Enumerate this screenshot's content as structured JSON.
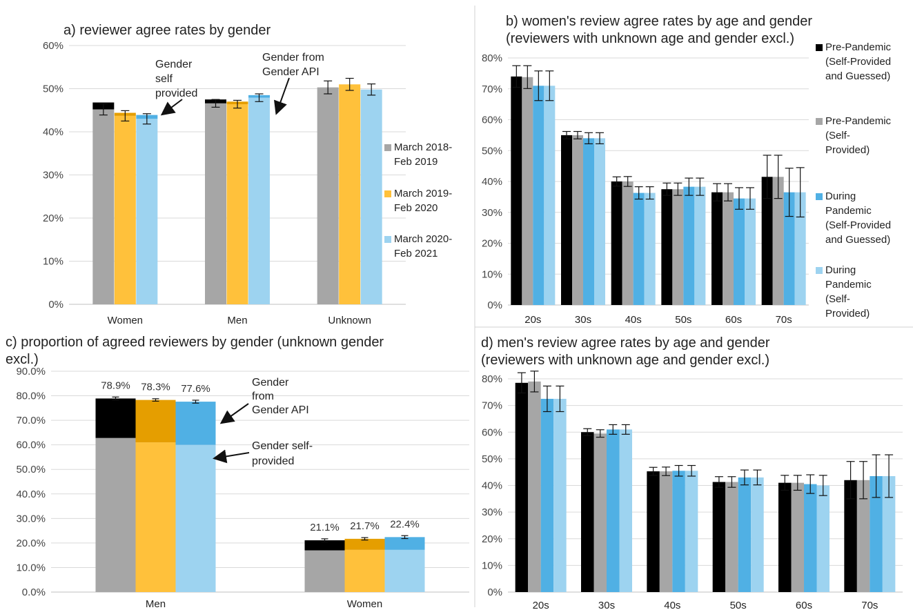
{
  "colors": {
    "black": "#000000",
    "gray": "#a6a6a6",
    "dark_orange": "#e59e00",
    "orange": "#ffc13b",
    "blue": "#50b0e4",
    "light_blue": "#9dd3f0"
  },
  "chart_data": [
    {
      "id": "a",
      "type": "bar",
      "title": "a) reviewer agree rates by gender",
      "categories": [
        "Women",
        "Men",
        "Unknown"
      ],
      "ylim": [
        0,
        60
      ],
      "yticks": [
        "0%",
        "10%",
        "20%",
        "30%",
        "40%",
        "50%",
        "60%"
      ],
      "grid": true,
      "legend_position": "right",
      "series": [
        {
          "name": "March 2018-Feb 2019",
          "values": [
            45.2,
            46.6,
            50.3
          ],
          "self_provided_extra": [
            1.6,
            0.9,
            0
          ],
          "error": [
            1.3,
            0.9,
            1.5
          ]
        },
        {
          "name": "March 2019-Feb 2020",
          "values": [
            43.7,
            46.4,
            51.0
          ],
          "self_provided_extra": [
            0.7,
            0.6,
            0
          ],
          "error": [
            1.2,
            0.9,
            1.4
          ]
        },
        {
          "name": "March 2020-Feb 2021",
          "values": [
            43.0,
            47.9,
            49.8
          ],
          "self_provided_extra": [
            0.9,
            0.6,
            0
          ],
          "error": [
            1.2,
            0.9,
            1.3
          ]
        }
      ],
      "annotations": [
        {
          "lines": [
            "Gender",
            "self",
            "provided"
          ]
        },
        {
          "lines": [
            "Gender from",
            "Gender API"
          ]
        }
      ],
      "legend": [
        {
          "lines": [
            "March 2018-",
            "Feb 2019"
          ]
        },
        {
          "lines": [
            "March 2019-",
            "Feb 2020"
          ]
        },
        {
          "lines": [
            "March 2020-",
            "Feb 2021"
          ]
        }
      ]
    },
    {
      "id": "b",
      "type": "bar",
      "title": "b) women's review agree rates by age and gender",
      "subtitle": "(reviewers with unknown age and gender excl.)",
      "categories": [
        "20s",
        "30s",
        "40s",
        "50s",
        "60s",
        "70s"
      ],
      "ylim": [
        0,
        80
      ],
      "yticks": [
        "0%",
        "10%",
        "20%",
        "30%",
        "40%",
        "50%",
        "60%",
        "70%",
        "80%"
      ],
      "grid": true,
      "legend_position": "right",
      "series": [
        {
          "name": "Pre-Pandemic (Self-Provided and Guessed)",
          "values": [
            74,
            55,
            40,
            37.5,
            36.5,
            41.5
          ],
          "error": [
            3.5,
            1.2,
            1.5,
            2,
            2.8,
            7
          ]
        },
        {
          "name": "Pre-Pandemic (Self-Provided)",
          "values": [
            73.8,
            55,
            40,
            37.5,
            36.5,
            41.5
          ],
          "error": [
            3.7,
            1.2,
            1.6,
            2,
            2.8,
            7
          ]
        },
        {
          "name": "During Pandemic (Self-Provided and Guessed)",
          "values": [
            71,
            54,
            36.3,
            38.3,
            34.5,
            36.5
          ],
          "error": [
            4.8,
            1.8,
            2,
            2.8,
            3.5,
            7.8
          ]
        },
        {
          "name": "During Pandemic (Self-Provided)",
          "values": [
            71,
            54,
            36.3,
            38.3,
            34.5,
            36.5
          ],
          "error": [
            4.8,
            1.8,
            2,
            2.8,
            3.5,
            8
          ]
        }
      ],
      "legend": [
        {
          "lines": [
            "Pre-Pandemic",
            "(Self-Provided",
            "and Guessed)"
          ]
        },
        {
          "lines": [
            "Pre-Pandemic",
            "(Self-",
            "Provided)"
          ]
        },
        {
          "lines": [
            "During",
            "Pandemic",
            "(Self-Provided",
            "and Guessed)"
          ]
        },
        {
          "lines": [
            "During",
            "Pandemic",
            "(Self-",
            "Provided)"
          ]
        }
      ]
    },
    {
      "id": "c",
      "type": "bar",
      "title": "c) proportion of agreed reviewers by gender (unknown gender",
      "title2": "excl.)",
      "categories": [
        "Men",
        "Women"
      ],
      "ylim": [
        0,
        90
      ],
      "yticks": [
        "0.0%",
        "10.0%",
        "20.0%",
        "30.0%",
        "40.0%",
        "50.0%",
        "60.0%",
        "70.0%",
        "80.0%",
        "90.0%"
      ],
      "grid": true,
      "series": [
        {
          "name": "March 2018-Feb 2019",
          "self_provided": [
            62.8,
            17.0
          ],
          "values": [
            78.9,
            21.1
          ],
          "labels": [
            "78.9%",
            "21.1%"
          ],
          "error": [
            0.6,
            0.6
          ]
        },
        {
          "name": "March 2019-Feb 2020",
          "self_provided": [
            61.0,
            17.2
          ],
          "values": [
            78.3,
            21.7
          ],
          "labels": [
            "78.3%",
            "21.7%"
          ],
          "error": [
            0.5,
            0.5
          ]
        },
        {
          "name": "March 2020-Feb 2021",
          "self_provided": [
            60.0,
            17.2
          ],
          "values": [
            77.6,
            22.4
          ],
          "labels": [
            "77.6%",
            "22.4%"
          ],
          "error": [
            0.6,
            0.6
          ]
        }
      ],
      "annotations": [
        {
          "lines": [
            "Gender",
            "from",
            "Gender API"
          ]
        },
        {
          "lines": [
            "Gender self-",
            "provided"
          ]
        }
      ]
    },
    {
      "id": "d",
      "type": "bar",
      "title": "d) men's review agree rates by age and gender",
      "subtitle": "(reviewers with unknown age and gender excl.)",
      "categories": [
        "20s",
        "30s",
        "40s",
        "50s",
        "60s",
        "70s"
      ],
      "ylim": [
        0,
        80
      ],
      "yticks": [
        "0%",
        "10%",
        "20%",
        "30%",
        "40%",
        "50%",
        "60%",
        "70%",
        "80%"
      ],
      "grid": true,
      "series": [
        {
          "name": "Pre-Pandemic (Self-Provided and Guessed)",
          "values": [
            78.5,
            60,
            45.3,
            41.3,
            41,
            42
          ],
          "error": [
            3.8,
            1.3,
            1.5,
            2,
            2.8,
            7
          ]
        },
        {
          "name": "Pre-Pandemic (Self-Provided)",
          "values": [
            79,
            59.5,
            45.3,
            41.3,
            41,
            42
          ],
          "error": [
            3.9,
            1.4,
            1.6,
            2,
            2.8,
            7
          ]
        },
        {
          "name": "During Pandemic (Self-Provided and Guessed)",
          "values": [
            72.5,
            61,
            45.5,
            43,
            40.5,
            43.5
          ],
          "error": [
            4.8,
            1.8,
            2,
            2.8,
            3.5,
            8
          ]
        },
        {
          "name": "During Pandemic (Self-Provided)",
          "values": [
            72.5,
            61,
            45.5,
            43,
            40,
            43.5
          ],
          "error": [
            4.8,
            1.8,
            2,
            2.8,
            3.8,
            8
          ]
        }
      ]
    }
  ]
}
